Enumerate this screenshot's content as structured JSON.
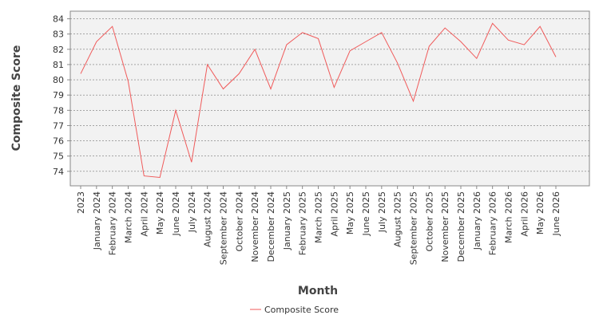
{
  "chart_data": {
    "type": "line",
    "x_label": "Month",
    "y_label": "Composite Score",
    "categories": [
      "2023",
      "January 2024",
      "February 2024",
      "March 2024",
      "April 2024",
      "May 2024",
      "June 2024",
      "July 2024",
      "August 2024",
      "September 2024",
      "October 2024",
      "November 2024",
      "December 2024",
      "January 2025",
      "February 2025",
      "March 2025",
      "April 2025",
      "May 2025",
      "June 2025",
      "July 2025",
      "August 2025",
      "September 2025",
      "October 2025",
      "November 2025",
      "December 2025",
      "January 2026",
      "February 2026",
      "March 2026",
      "April 2026",
      "May 2026",
      "June 2026"
    ],
    "series": [
      {
        "name": "Composite Score",
        "color": "#f05a5a",
        "values": [
          80.4,
          82.5,
          83.5,
          79.9,
          73.7,
          73.6,
          78.0,
          74.6,
          81.0,
          79.4,
          80.4,
          82.0,
          79.4,
          82.3,
          83.1,
          82.7,
          79.5,
          81.9,
          82.5,
          83.1,
          81.1,
          78.6,
          82.2,
          83.4,
          82.5,
          81.4,
          83.7,
          82.6,
          82.3,
          83.5,
          81.5
        ]
      }
    ],
    "ylim": [
      73.05,
      84.5
    ],
    "yticks": [
      74,
      75,
      76,
      77,
      78,
      79,
      80,
      81,
      82,
      83,
      84
    ],
    "grid": true,
    "legend": "bottom"
  }
}
